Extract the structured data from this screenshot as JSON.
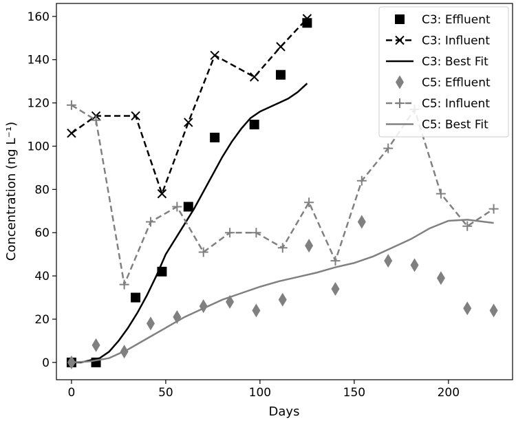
{
  "chart_data": {
    "type": "scatter",
    "title": "",
    "xlabel": "Days",
    "ylabel": "Concentration (ng L⁻¹)",
    "xlim": [
      -8,
      234
    ],
    "ylim": [
      -8,
      166
    ],
    "xticks": [
      0,
      50,
      100,
      150,
      200
    ],
    "yticks": [
      0,
      20,
      40,
      60,
      80,
      100,
      120,
      140,
      160
    ],
    "grid": false,
    "legend_position": "top-right",
    "series": [
      {
        "name": "C3: Effluent",
        "kind": "marker",
        "marker": "square",
        "color": "#000000",
        "x": [
          0,
          13,
          34,
          48,
          62,
          76,
          97,
          111,
          125
        ],
        "y": [
          0,
          0,
          30,
          42,
          72,
          104,
          110,
          133,
          157
        ]
      },
      {
        "name": "C3: Influent",
        "kind": "line",
        "marker": "x",
        "dash": true,
        "color": "#000000",
        "x": [
          0,
          13,
          34,
          48,
          62,
          76,
          97,
          111,
          125
        ],
        "y": [
          106,
          114,
          114,
          78,
          111,
          142,
          132,
          146,
          159
        ]
      },
      {
        "name": "C3: Best Fit",
        "kind": "line",
        "marker": "none",
        "dash": false,
        "color": "#000000",
        "x": [
          0,
          5,
          10,
          15,
          20,
          25,
          30,
          35,
          40,
          45,
          50,
          55,
          60,
          65,
          70,
          75,
          80,
          85,
          90,
          95,
          100,
          105,
          110,
          115,
          120,
          125
        ],
        "y": [
          0,
          0,
          1,
          2,
          5,
          10,
          16,
          23,
          31,
          40,
          50,
          57,
          64,
          71,
          79,
          87,
          95,
          102,
          108,
          113,
          116,
          118,
          120,
          122,
          125,
          129
        ]
      },
      {
        "name": "C5: Effluent",
        "kind": "marker",
        "marker": "diamond",
        "color": "#808080",
        "x": [
          0,
          13,
          28,
          42,
          56,
          70,
          84,
          98,
          112,
          126,
          140,
          154,
          168,
          182,
          196,
          210,
          224
        ],
        "y": [
          0,
          8,
          5,
          18,
          21,
          26,
          28,
          24,
          29,
          54,
          34,
          65,
          47,
          45,
          39,
          25,
          24
        ]
      },
      {
        "name": "C5: Influent",
        "kind": "line",
        "marker": "plus",
        "dash": true,
        "color": "#808080",
        "x": [
          0,
          13,
          28,
          42,
          56,
          70,
          84,
          98,
          112,
          126,
          140,
          154,
          168,
          182,
          196,
          210,
          224
        ],
        "y": [
          119,
          112,
          36,
          65,
          72,
          51,
          60,
          60,
          53,
          74,
          47,
          84,
          99,
          117,
          78,
          63,
          71
        ]
      },
      {
        "name": "C5: Best Fit",
        "kind": "line",
        "marker": "none",
        "dash": false,
        "color": "#808080",
        "x": [
          0,
          10,
          20,
          30,
          40,
          50,
          60,
          70,
          80,
          90,
          100,
          110,
          120,
          130,
          140,
          150,
          160,
          170,
          180,
          190,
          200,
          210,
          224
        ],
        "y": [
          0,
          0.5,
          2,
          6,
          11,
          16,
          21,
          25,
          29,
          32,
          35,
          37.5,
          39.5,
          41.5,
          44,
          46,
          49,
          53,
          57,
          62,
          65.5,
          66,
          64.5
        ]
      }
    ]
  }
}
